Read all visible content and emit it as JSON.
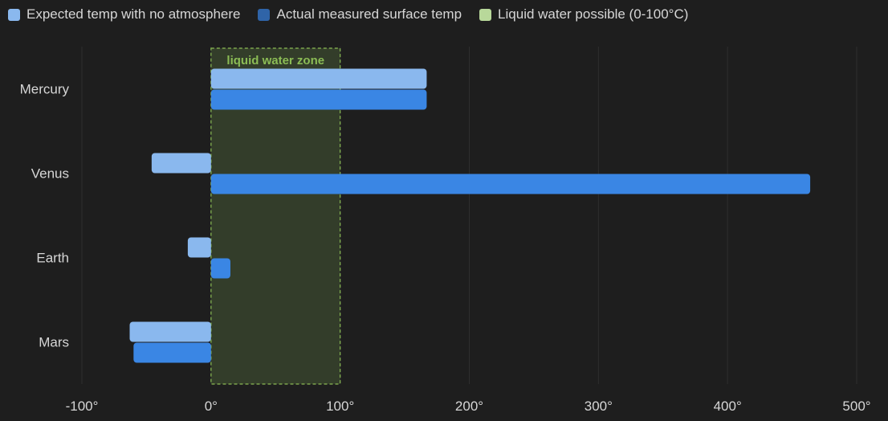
{
  "legend": {
    "items": [
      {
        "label": "Expected temp with no atmosphere",
        "color": "#8ab8ee"
      },
      {
        "label": "Actual measured surface temp",
        "color": "#2f64a8"
      },
      {
        "label": "Liquid water possible (0-100°C)",
        "color": "#b8d89a"
      }
    ]
  },
  "chart_data": {
    "type": "bar",
    "orientation": "horizontal",
    "categories": [
      "Mercury",
      "Venus",
      "Earth",
      "Mars"
    ],
    "series": [
      {
        "name": "Expected temp with no atmosphere",
        "values": [
          167,
          -46,
          -18,
          -63
        ],
        "color": "#8ab8ee"
      },
      {
        "name": "Actual measured surface temp",
        "values": [
          167,
          464,
          15,
          -60
        ],
        "color": "#3a86e4"
      }
    ],
    "xlim": [
      -100,
      500
    ],
    "x_ticks": [
      -100,
      0,
      100,
      200,
      300,
      400,
      500
    ],
    "tick_suffix": "°",
    "grid": true,
    "legend_position": "top-left",
    "shaded_region": {
      "from": 0,
      "to": 100,
      "label": "liquid water zone",
      "fill": "#333d2a",
      "stroke": "#8bbc55"
    },
    "colors": {
      "background": "#1e1e1e",
      "grid": "#2e2e2e",
      "text": "#d6d6d6"
    }
  }
}
